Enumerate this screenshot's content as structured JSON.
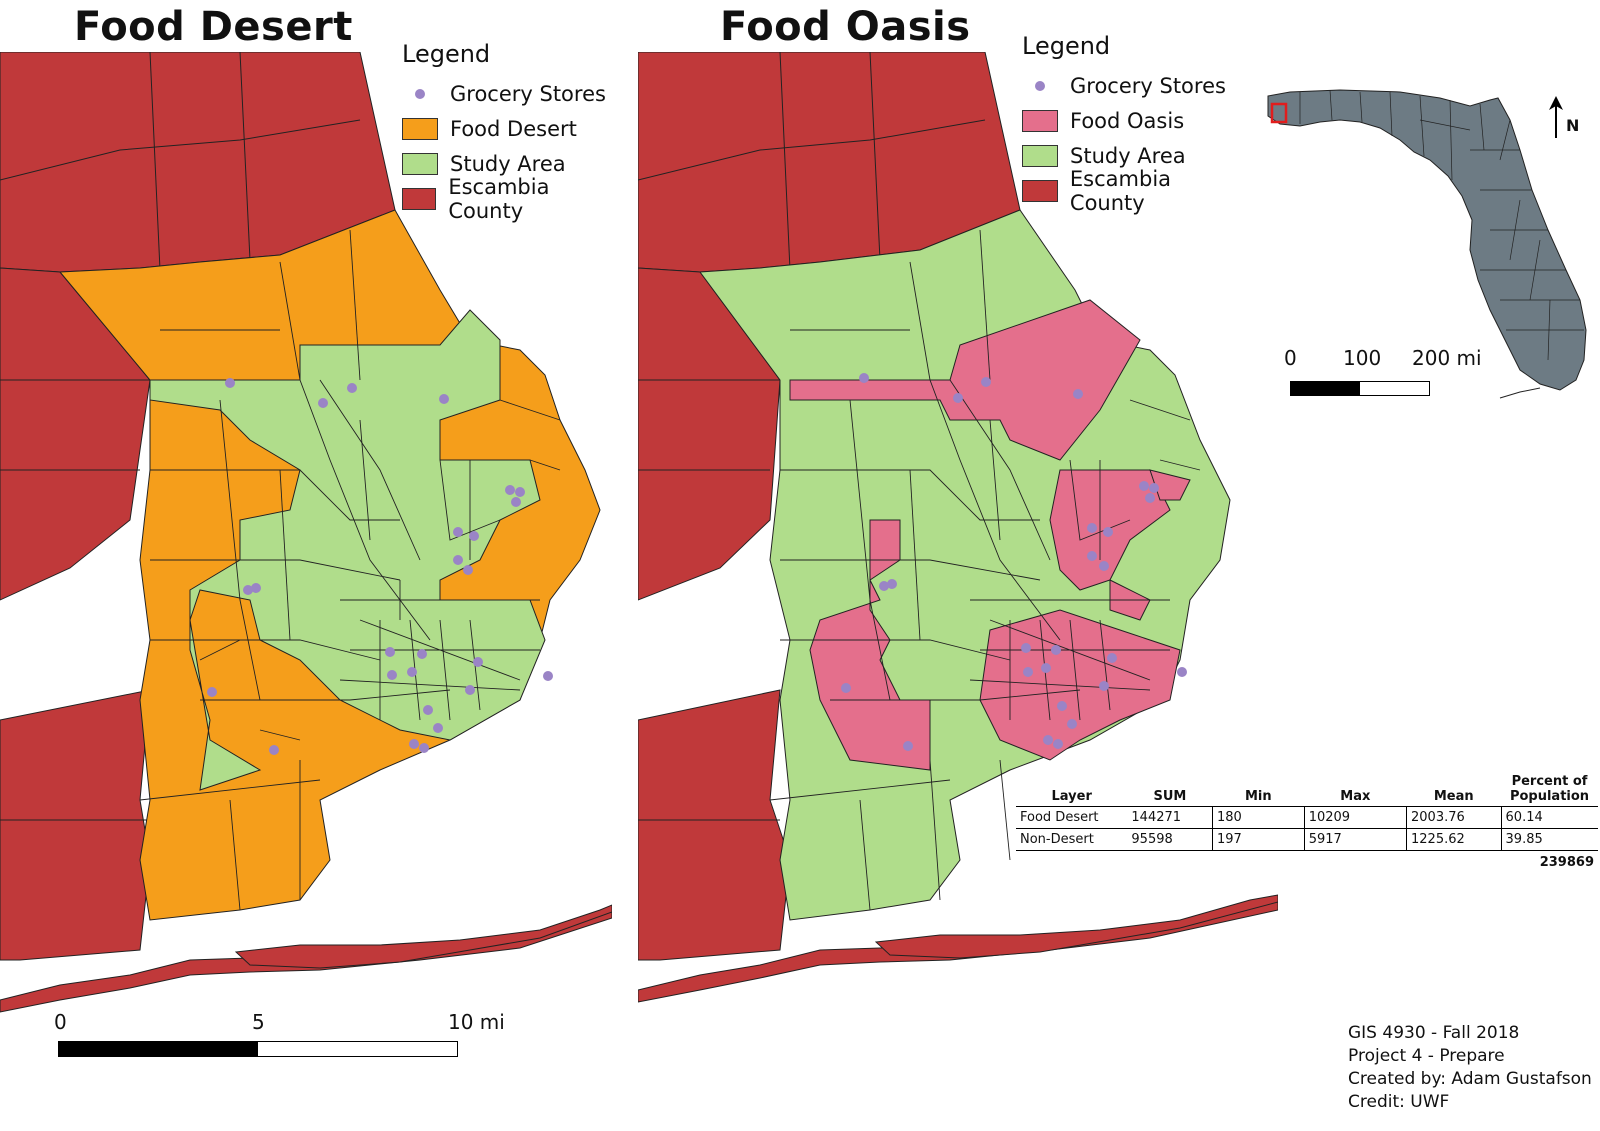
{
  "colors": {
    "county": "#c0393a",
    "food_desert": "#f59e1b",
    "study_area": "#b0dd8b",
    "food_oasis": "#e46f8c",
    "grocery": "#9a84c6",
    "florida": "#6d7b84"
  },
  "left_map": {
    "title": "Food Desert",
    "legend": {
      "title": "Legend",
      "items": [
        {
          "label": "Grocery Stores",
          "symbol": "point",
          "color": "#9a84c6"
        },
        {
          "label": "Food Desert",
          "symbol": "fill",
          "color": "#f59e1b"
        },
        {
          "label": "Study Area",
          "symbol": "fill",
          "color": "#b0dd8b"
        },
        {
          "label": "Escambia County",
          "symbol": "fill",
          "color": "#c0393a"
        }
      ]
    },
    "scale": {
      "labels": [
        "0",
        "5",
        "10 mi"
      ]
    }
  },
  "right_map": {
    "title": "Food Oasis",
    "legend": {
      "title": "Legend",
      "items": [
        {
          "label": "Grocery Stores",
          "symbol": "point",
          "color": "#9a84c6"
        },
        {
          "label": "Food Oasis",
          "symbol": "fill",
          "color": "#e46f8c"
        },
        {
          "label": "Study Area",
          "symbol": "fill",
          "color": "#b0dd8b"
        },
        {
          "label": "Escambia County",
          "symbol": "fill",
          "color": "#c0393a"
        }
      ]
    }
  },
  "inset": {
    "scale_labels": [
      "0",
      "100",
      "200 mi"
    ],
    "north_label": "N"
  },
  "stats_table": {
    "headers": [
      "Layer",
      "SUM",
      "Min",
      "Max",
      "Mean",
      "Percent of Population"
    ],
    "rows": [
      [
        "Food Desert",
        "144271",
        "180",
        "10209",
        "2003.76",
        "60.14"
      ],
      [
        "Non-Desert",
        "95598",
        "197",
        "5917",
        "1225.62",
        "39.85"
      ]
    ],
    "total": "239869"
  },
  "credits": [
    "GIS 4930 - Fall 2018",
    "Project 4 - Prepare",
    "Created by: Adam Gustafson",
    "Credit: UWF"
  ]
}
